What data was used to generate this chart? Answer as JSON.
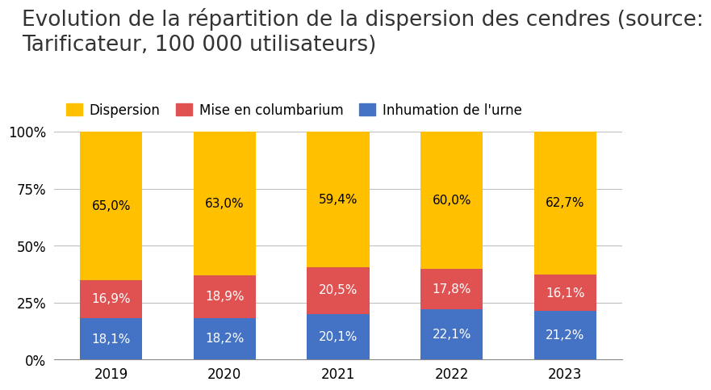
{
  "title": "Evolution de la répartition de la dispersion des cendres (source:\nTarificateur, 100 000 utilisateurs)",
  "years": [
    "2019",
    "2020",
    "2021",
    "2022",
    "2023"
  ],
  "inhumation": [
    18.1,
    18.2,
    20.1,
    22.1,
    21.2
  ],
  "columbarium": [
    16.9,
    18.9,
    20.5,
    17.8,
    16.1
  ],
  "dispersion": [
    65.0,
    63.0,
    59.4,
    60.0,
    62.7
  ],
  "color_inhumation": "#4472C4",
  "color_columbarium": "#E05252",
  "color_dispersion": "#FFC000",
  "label_inhumation": "Inhumation de l'urne",
  "label_columbarium": "Mise en columbarium",
  "label_dispersion": "Dispersion",
  "bar_label_fontsize": 11,
  "title_fontsize": 19,
  "tick_fontsize": 12,
  "legend_fontsize": 12,
  "yticks": [
    0,
    25,
    50,
    75,
    100
  ],
  "ytick_labels": [
    "0%",
    "25%",
    "50%",
    "75%",
    "100%"
  ],
  "background_color": "#FFFFFF",
  "bar_width": 0.55
}
